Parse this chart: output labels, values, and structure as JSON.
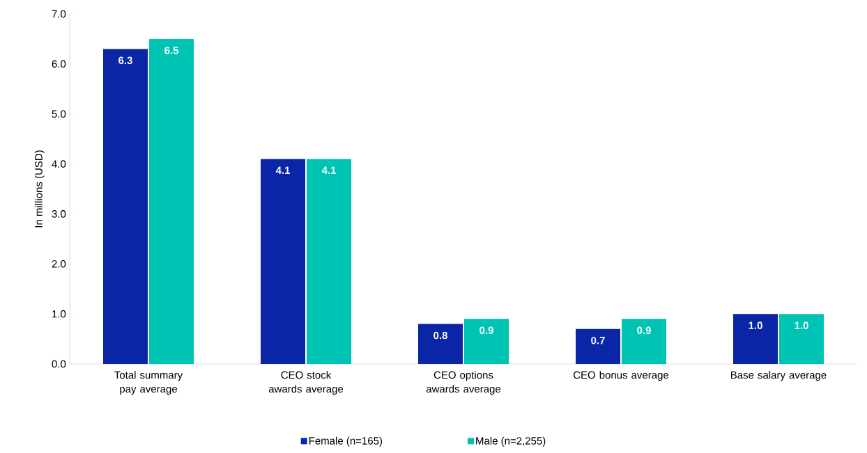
{
  "chart_data": {
    "type": "bar",
    "ylabel": "In millions (USD)",
    "categories": [
      "Total summary pay average",
      "CEO stock awards average",
      "CEO options awards average",
      "CEO bonus average",
      "Base salary average"
    ],
    "series": [
      {
        "name": "Female (n=165)",
        "color": "#0a26a6",
        "values": [
          6.3,
          4.1,
          0.8,
          0.7,
          1.0
        ],
        "value_labels": [
          "6.3",
          "4.1",
          "0.8",
          "0.7",
          "1.0"
        ]
      },
      {
        "name": "Male (n=2,255)",
        "color": "#00c4b3",
        "values": [
          6.5,
          4.1,
          0.9,
          0.9,
          1.0
        ],
        "value_labels": [
          "6.5",
          "4.1",
          "0.9",
          "0.9",
          "1.0"
        ]
      }
    ],
    "ylim": [
      0,
      7
    ],
    "yticks": [
      {
        "value": 0,
        "label": "0.0"
      },
      {
        "value": 1,
        "label": "1.0"
      },
      {
        "value": 2,
        "label": "2.0"
      },
      {
        "value": 3,
        "label": "3.0"
      },
      {
        "value": 4,
        "label": "4.0"
      },
      {
        "value": 5,
        "label": "5.0"
      },
      {
        "value": 6,
        "label": "6.0"
      },
      {
        "value": 7,
        "label": "7.0"
      }
    ],
    "legend": "bottom",
    "grid": false
  }
}
